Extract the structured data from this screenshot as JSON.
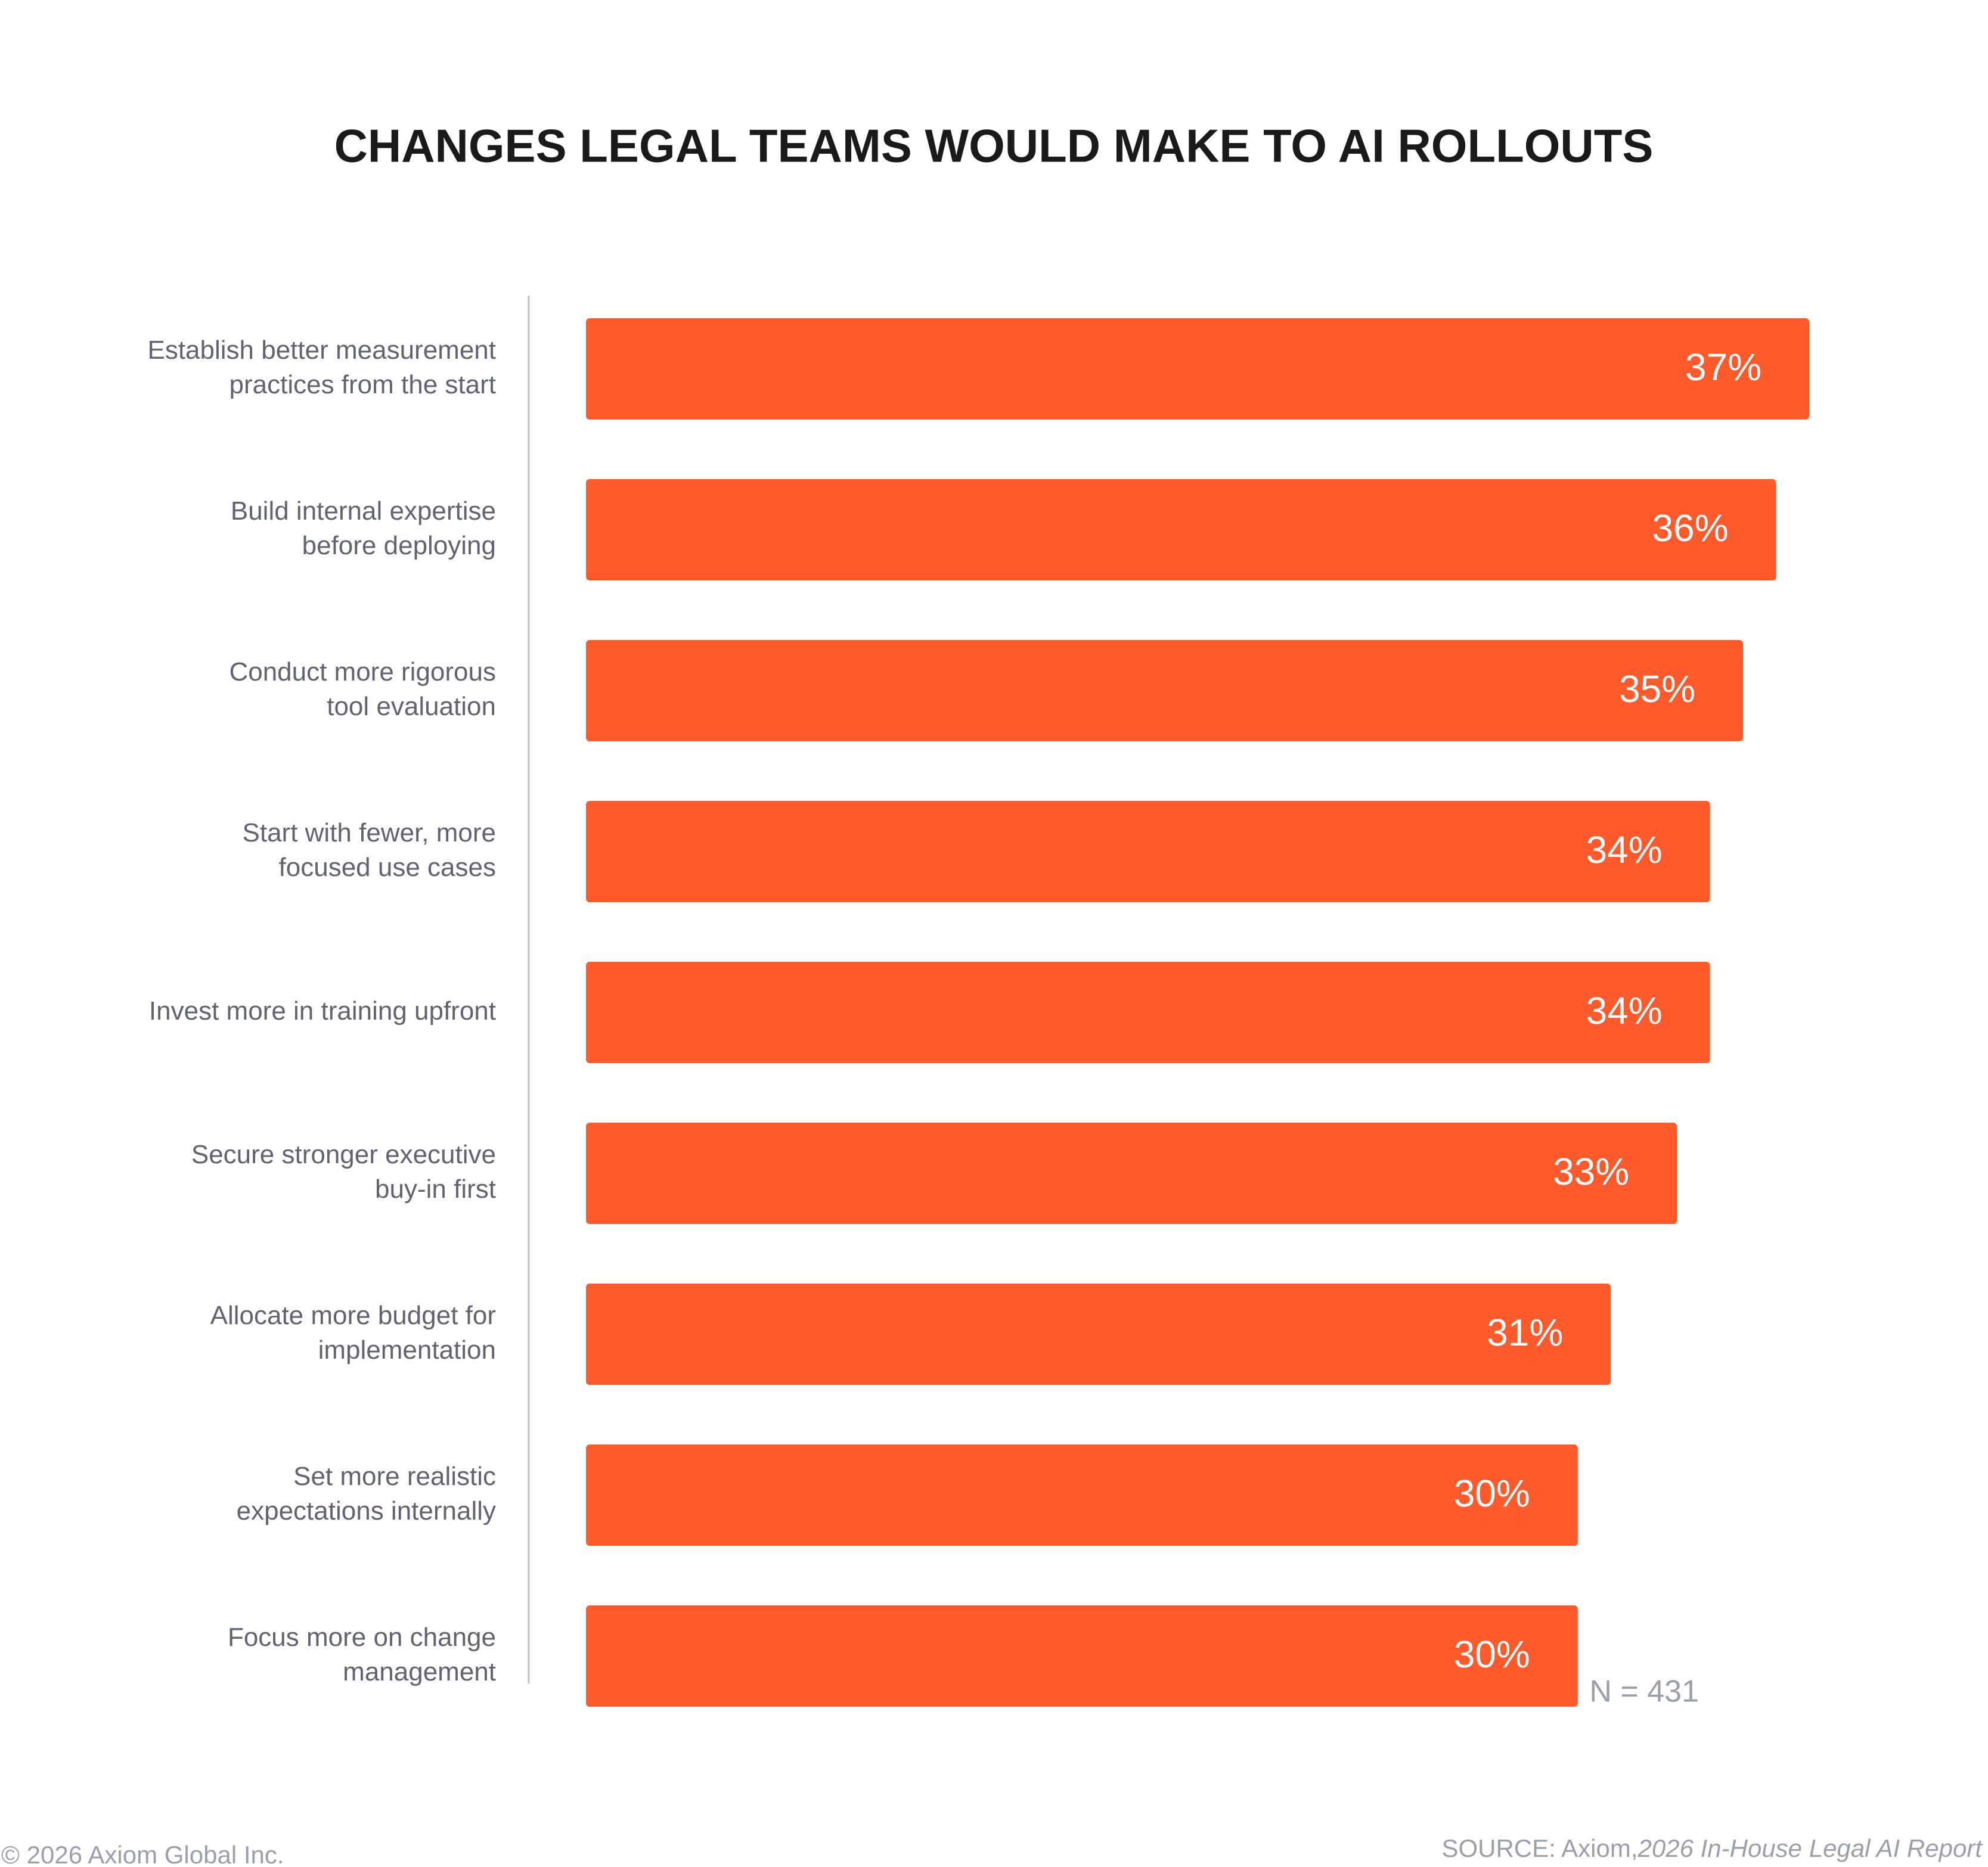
{
  "chart_data": {
    "type": "bar",
    "orientation": "horizontal",
    "title": "CHANGES LEGAL TEAMS WOULD MAKE TO AI ROLLOUTS",
    "categories": [
      [
        "Establish better measurement",
        "practices from the start"
      ],
      [
        "Build internal expertise",
        "before deploying"
      ],
      [
        "Conduct more rigorous",
        "tool evaluation"
      ],
      [
        "Start with fewer, more",
        "focused use cases"
      ],
      [
        "Invest more in training upfront"
      ],
      [
        "Secure stronger executive",
        "buy-in first"
      ],
      [
        "Allocate more budget for",
        "implementation"
      ],
      [
        "Set more realistic",
        "expectations internally"
      ],
      [
        "Focus more on change",
        "management"
      ]
    ],
    "values": [
      37,
      36,
      35,
      34,
      34,
      33,
      31,
      30,
      30
    ],
    "value_labels": [
      "37%",
      "36%",
      "35%",
      "34%",
      "34%",
      "33%",
      "31%",
      "30%",
      "30%"
    ],
    "color": "#ff5a2b",
    "xlim": [
      0,
      37
    ],
    "note": "N = 431",
    "copyright": "© 2026 Axiom Global Inc.",
    "source": {
      "prefix": "SOURCE: Axiom,",
      "report": "2026 In-House Legal AI Report"
    }
  }
}
